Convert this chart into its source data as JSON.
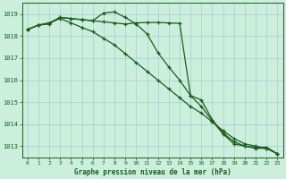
{
  "x": [
    0,
    1,
    2,
    3,
    4,
    5,
    6,
    7,
    8,
    9,
    10,
    11,
    12,
    13,
    14,
    15,
    16,
    17,
    18,
    19,
    20,
    21,
    22,
    23
  ],
  "line1": [
    1018.3,
    1018.5,
    1018.6,
    1018.85,
    1018.8,
    1018.75,
    1018.7,
    1018.65,
    1018.6,
    1018.55,
    1018.6,
    1018.62,
    1018.62,
    1018.6,
    1018.58,
    1015.3,
    1015.1,
    1014.2,
    1013.6,
    1013.2,
    1013.0,
    1012.9,
    1012.9,
    1012.65
  ],
  "line2": [
    1018.3,
    1018.5,
    1018.55,
    1018.85,
    1018.8,
    1018.75,
    1018.7,
    1019.05,
    1019.1,
    1018.85,
    1018.55,
    1018.1,
    1017.25,
    1016.6,
    1016.0,
    1015.3,
    1014.8,
    1014.15,
    1013.55,
    1013.1,
    1013.0,
    1012.95,
    1012.95,
    1012.65
  ],
  "line3": [
    1018.3,
    1018.5,
    1018.6,
    1018.8,
    1018.6,
    1018.4,
    1018.2,
    1017.9,
    1017.6,
    1017.2,
    1016.8,
    1016.4,
    1016.0,
    1015.6,
    1015.2,
    1014.8,
    1014.5,
    1014.1,
    1013.7,
    1013.35,
    1013.1,
    1013.0,
    1012.9,
    1012.65
  ],
  "ylim": [
    1012.5,
    1019.5
  ],
  "yticks": [
    1013,
    1014,
    1015,
    1016,
    1017,
    1018,
    1019
  ],
  "xlim": [
    -0.5,
    23.5
  ],
  "xlabel": "Graphe pression niveau de la mer (hPa)",
  "bg_color": "#cceedd",
  "grid_color": "#aacccc",
  "line_color": "#1a5c1a",
  "marker": "+",
  "markersize": 3.5,
  "linewidth": 0.9
}
